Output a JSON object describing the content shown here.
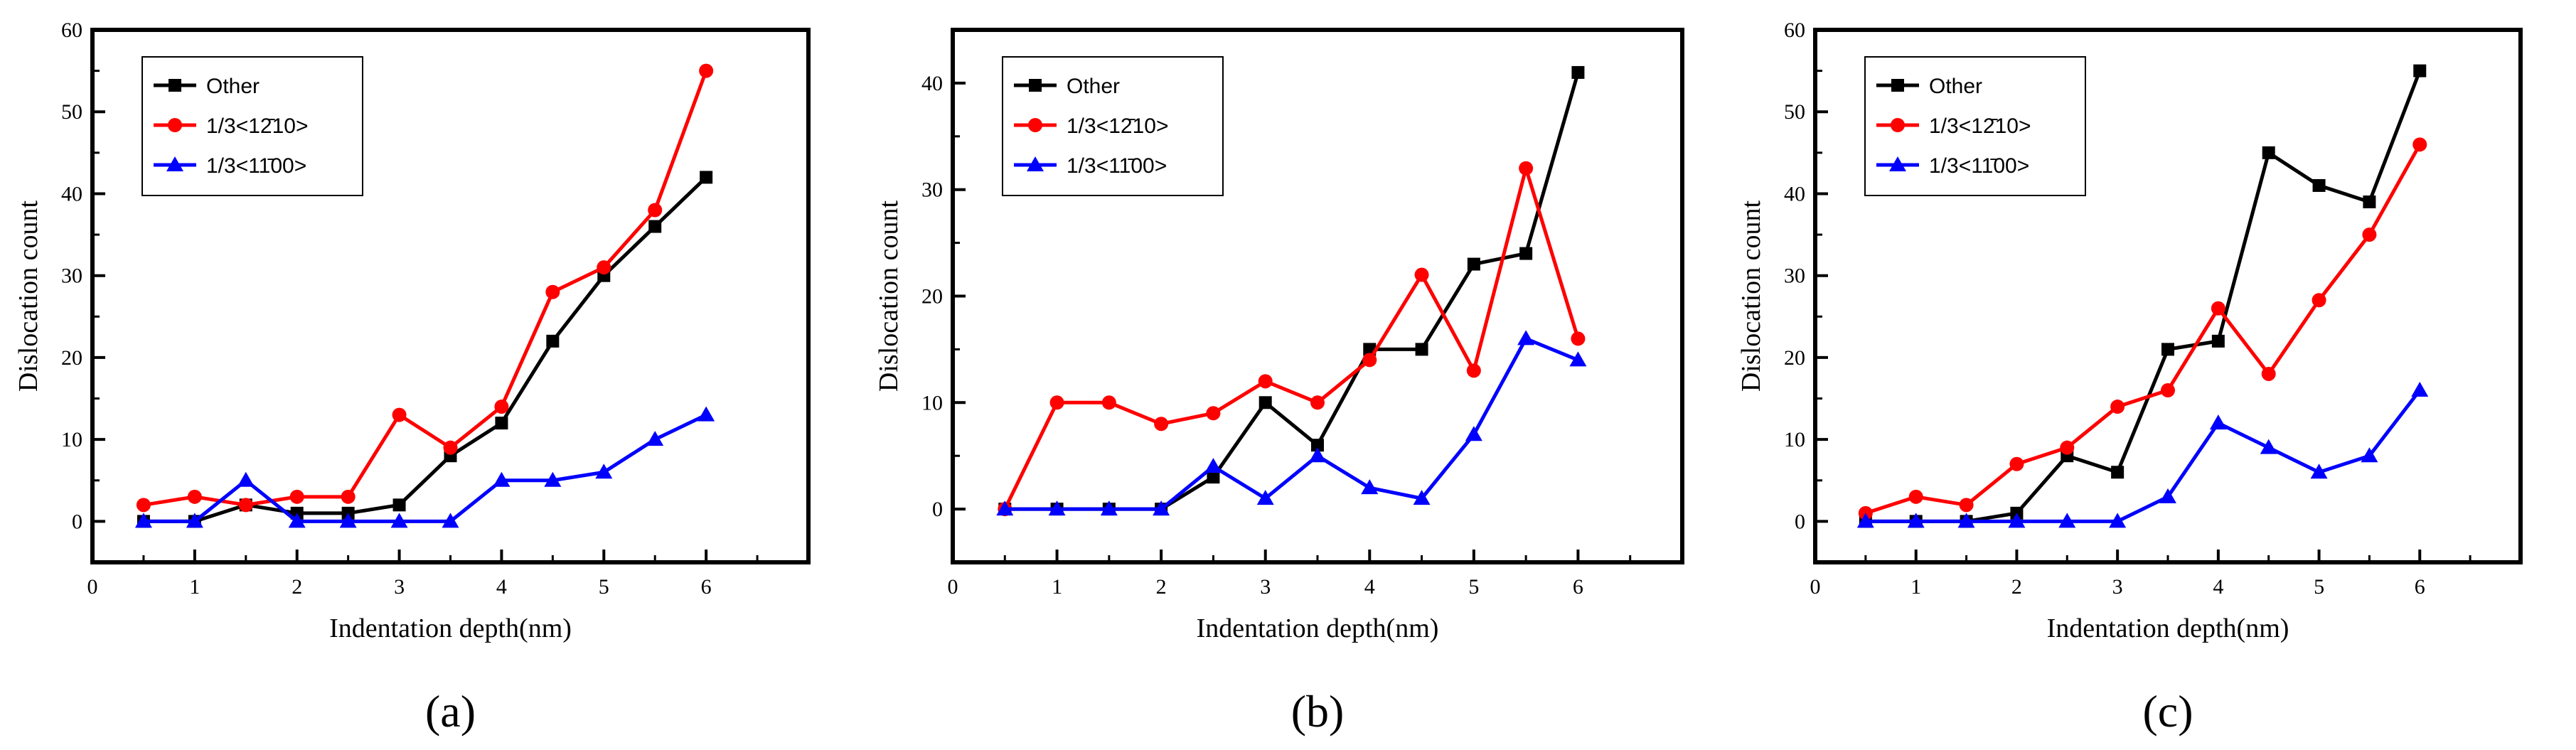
{
  "figure": {
    "panels": [
      "(a)",
      "(b)",
      "(c)"
    ]
  },
  "chart_data": [
    {
      "type": "line",
      "panel": "(a)",
      "title": "",
      "xlabel": "Indentation depth(nm)",
      "ylabel": "Dislocation count",
      "xlim": [
        0,
        7
      ],
      "ylim": [
        -5,
        60
      ],
      "xticks": [
        0,
        1,
        2,
        3,
        4,
        5,
        6
      ],
      "yticks": [
        0,
        10,
        20,
        30,
        40,
        50,
        60
      ],
      "x": [
        0.5,
        1,
        1.5,
        2,
        2.5,
        3,
        3.5,
        4,
        4.5,
        5,
        5.5,
        6
      ],
      "legend": "top-left",
      "series": [
        {
          "name": "Other",
          "color": "#000000",
          "marker": "square",
          "values": [
            0,
            0,
            2,
            1,
            1,
            2,
            8,
            12,
            22,
            30,
            36,
            42
          ]
        },
        {
          "name": "1/3<12̄10>",
          "color": "#ff0000",
          "marker": "circle",
          "values": [
            2,
            3,
            2,
            3,
            3,
            13,
            9,
            14,
            28,
            31,
            38,
            55
          ]
        },
        {
          "name": "1/3<11̄00>",
          "color": "#0000ff",
          "marker": "triangle",
          "values": [
            0,
            0,
            5,
            0,
            0,
            0,
            0,
            5,
            5,
            6,
            10,
            13
          ]
        }
      ]
    },
    {
      "type": "line",
      "panel": "(b)",
      "title": "",
      "xlabel": "Indentation depth(nm)",
      "ylabel": "Dislocation count",
      "xlim": [
        0,
        7
      ],
      "ylim": [
        -5,
        45
      ],
      "xticks": [
        0,
        1,
        2,
        3,
        4,
        5,
        6
      ],
      "yticks": [
        0,
        10,
        20,
        30,
        40
      ],
      "x": [
        0.5,
        1,
        1.5,
        2,
        2.5,
        3,
        3.5,
        4,
        4.5,
        5,
        5.5,
        6
      ],
      "legend": "top-left",
      "series": [
        {
          "name": "Other",
          "color": "#000000",
          "marker": "square",
          "values": [
            0,
            0,
            0,
            0,
            3,
            10,
            6,
            15,
            15,
            23,
            24,
            41
          ]
        },
        {
          "name": "1/3<12̄10>",
          "color": "#ff0000",
          "marker": "circle",
          "values": [
            0,
            10,
            10,
            8,
            9,
            12,
            10,
            14,
            22,
            13,
            32,
            16
          ]
        },
        {
          "name": "1/3<11̄00>",
          "color": "#0000ff",
          "marker": "triangle",
          "values": [
            0,
            0,
            0,
            0,
            4,
            1,
            5,
            2,
            1,
            7,
            16,
            14
          ]
        }
      ]
    },
    {
      "type": "line",
      "panel": "(c)",
      "title": "",
      "xlabel": "Indentation depth(nm)",
      "ylabel": "Dislocation count",
      "xlim": [
        0,
        7
      ],
      "ylim": [
        -5,
        60
      ],
      "xticks": [
        0,
        1,
        2,
        3,
        4,
        5,
        6
      ],
      "yticks": [
        0,
        10,
        20,
        30,
        40,
        50,
        60
      ],
      "x": [
        0.5,
        1,
        1.5,
        2,
        2.5,
        3,
        3.5,
        4,
        4.5,
        5,
        5.5,
        6
      ],
      "legend": "top-left",
      "series": [
        {
          "name": "Other",
          "color": "#000000",
          "marker": "square",
          "values": [
            0,
            0,
            0,
            1,
            8,
            6,
            21,
            22,
            45,
            41,
            39,
            55
          ]
        },
        {
          "name": "1/3<12̄10>",
          "color": "#ff0000",
          "marker": "circle",
          "values": [
            1,
            3,
            2,
            7,
            9,
            14,
            16,
            26,
            18,
            27,
            35,
            46
          ]
        },
        {
          "name": "1/3<11̄00>",
          "color": "#0000ff",
          "marker": "triangle",
          "values": [
            0,
            0,
            0,
            0,
            0,
            0,
            3,
            12,
            9,
            6,
            8,
            16
          ]
        }
      ]
    }
  ]
}
